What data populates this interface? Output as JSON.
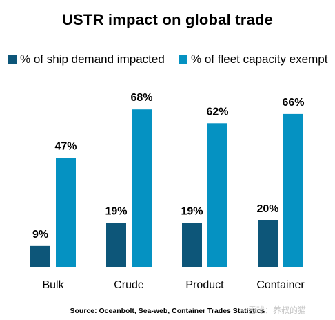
{
  "chart_data": {
    "type": "bar",
    "title": "USTR impact on global trade",
    "categories": [
      "Bulk",
      "Crude",
      "Product",
      "Container"
    ],
    "series": [
      {
        "name": "% of ship demand impacted",
        "values": [
          9,
          19,
          19,
          20
        ],
        "labels": [
          "9%",
          "19%",
          "19%",
          "20%"
        ],
        "color": "#0d5679"
      },
      {
        "name": "% of fleet capacity exempt",
        "values": [
          47,
          68,
          62,
          66
        ],
        "labels": [
          "47%",
          "68%",
          "62%",
          "66%"
        ],
        "color": "#0592c2"
      }
    ],
    "xlabel": "",
    "ylabel": "",
    "ylim": [
      0,
      70
    ],
    "grid": false,
    "legend": "top"
  },
  "source": "Source: Oceanbolt, Sea-web, Container Trades Statistics",
  "watermark": "雪球：养叔的猫"
}
